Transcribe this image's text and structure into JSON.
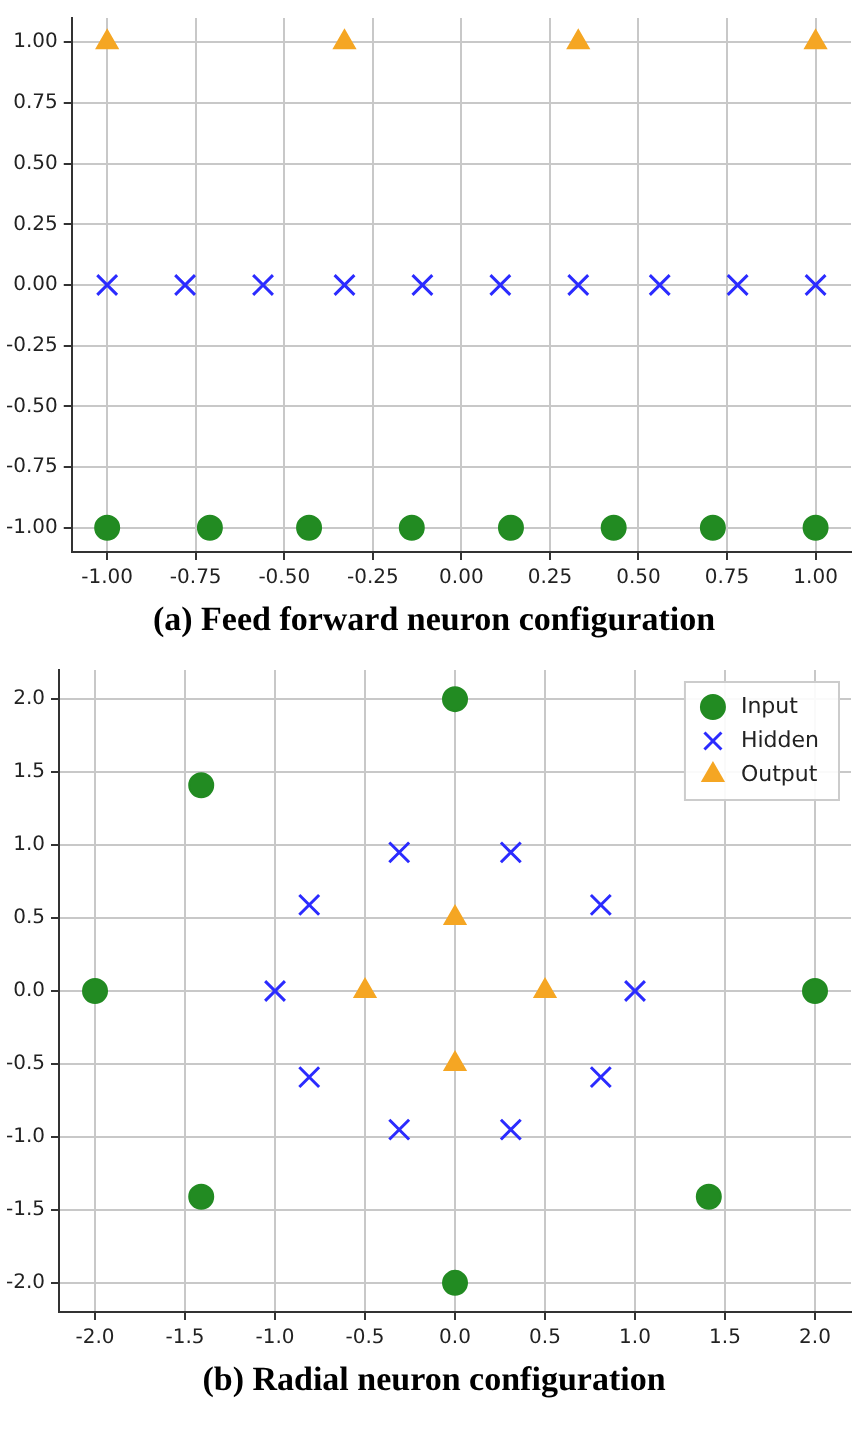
{
  "chart_data": [
    {
      "type": "scatter",
      "title": "(a) Feed forward neuron configuration",
      "xlim": [
        -1.1,
        1.1
      ],
      "ylim": [
        -1.1,
        1.1
      ],
      "xticks": [
        {
          "value": -1,
          "label": "-1.00"
        },
        {
          "value": -0.75,
          "label": "-0.75"
        },
        {
          "value": -0.5,
          "label": "-0.50"
        },
        {
          "value": -0.25,
          "label": "-0.25"
        },
        {
          "value": 0,
          "label": "0.00"
        },
        {
          "value": 0.25,
          "label": "0.25"
        },
        {
          "value": 0.5,
          "label": "0.50"
        },
        {
          "value": 0.75,
          "label": "0.75"
        },
        {
          "value": 1,
          "label": "1.00"
        }
      ],
      "yticks": [
        {
          "value": -1,
          "label": "-1.00"
        },
        {
          "value": -0.75,
          "label": "-0.75"
        },
        {
          "value": -0.5,
          "label": "-0.50"
        },
        {
          "value": -0.25,
          "label": "-0.25"
        },
        {
          "value": 0,
          "label": "0.00"
        },
        {
          "value": 0.25,
          "label": "0.25"
        },
        {
          "value": 0.5,
          "label": "0.50"
        },
        {
          "value": 0.75,
          "label": "0.75"
        },
        {
          "value": 1,
          "label": "1.00"
        }
      ],
      "grid": true,
      "series": [
        {
          "color": "#228b22",
          "marker": "circle",
          "x": [
            -1,
            -0.71,
            -0.43,
            -0.14,
            0.14,
            0.43,
            0.71,
            1
          ],
          "values": [
            -1,
            -1,
            -1,
            -1,
            -1,
            -1,
            -1,
            -1
          ]
        },
        {
          "color": "#2b2bff",
          "marker": "cross",
          "x": [
            -1,
            -0.78,
            -0.56,
            -0.33,
            -0.11,
            0.11,
            0.33,
            0.56,
            0.78,
            1
          ],
          "values": [
            0,
            0,
            0,
            0,
            0,
            0,
            0,
            0,
            0,
            0
          ]
        },
        {
          "color": "#f5a623",
          "marker": "triangle",
          "x": [
            -1,
            -0.33,
            0.33,
            1
          ],
          "values": [
            1,
            1,
            1,
            1
          ]
        }
      ]
    },
    {
      "type": "scatter",
      "title": "(b) Radial neuron configuration",
      "xlim": [
        -2.2,
        2.2
      ],
      "ylim": [
        -2.2,
        2.2
      ],
      "xticks": [
        {
          "value": -2,
          "label": "-2.0"
        },
        {
          "value": -1.5,
          "label": "-1.5"
        },
        {
          "value": -1,
          "label": "-1.0"
        },
        {
          "value": -0.5,
          "label": "-0.5"
        },
        {
          "value": 0,
          "label": "0.0"
        },
        {
          "value": 0.5,
          "label": "0.5"
        },
        {
          "value": 1,
          "label": "1.0"
        },
        {
          "value": 1.5,
          "label": "1.5"
        },
        {
          "value": 2,
          "label": "2.0"
        }
      ],
      "yticks": [
        {
          "value": -2,
          "label": "-2.0"
        },
        {
          "value": -1.5,
          "label": "-1.5"
        },
        {
          "value": -1,
          "label": "-1.0"
        },
        {
          "value": -0.5,
          "label": "-0.5"
        },
        {
          "value": 0,
          "label": "0.0"
        },
        {
          "value": 0.5,
          "label": "0.5"
        },
        {
          "value": 1,
          "label": "1.0"
        },
        {
          "value": 1.5,
          "label": "1.5"
        },
        {
          "value": 2,
          "label": "2.0"
        }
      ],
      "grid": true,
      "legend": "top right",
      "series": [
        {
          "name": "Input",
          "color": "#228b22",
          "marker": "circle",
          "x": [
            2,
            1.41,
            0,
            -1.41,
            -2,
            -1.41,
            0,
            1.41
          ],
          "values": [
            0,
            null,
            2,
            1.41,
            0,
            -1.41,
            -2,
            -1.41
          ]
        },
        {
          "name": "Hidden",
          "color": "#2b2bff",
          "marker": "cross",
          "x": [
            1,
            0.81,
            0.31,
            -0.31,
            -0.81,
            -1,
            -0.81,
            -0.31,
            0.31,
            0.81
          ],
          "values": [
            0,
            0.59,
            0.95,
            0.95,
            0.59,
            0,
            -0.59,
            -0.95,
            -0.95,
            -0.59
          ]
        },
        {
          "name": "Output",
          "color": "#f5a623",
          "marker": "triangle",
          "x": [
            0.5,
            0,
            -0.5,
            0
          ],
          "values": [
            0,
            0.5,
            0,
            -0.5
          ]
        }
      ]
    }
  ]
}
